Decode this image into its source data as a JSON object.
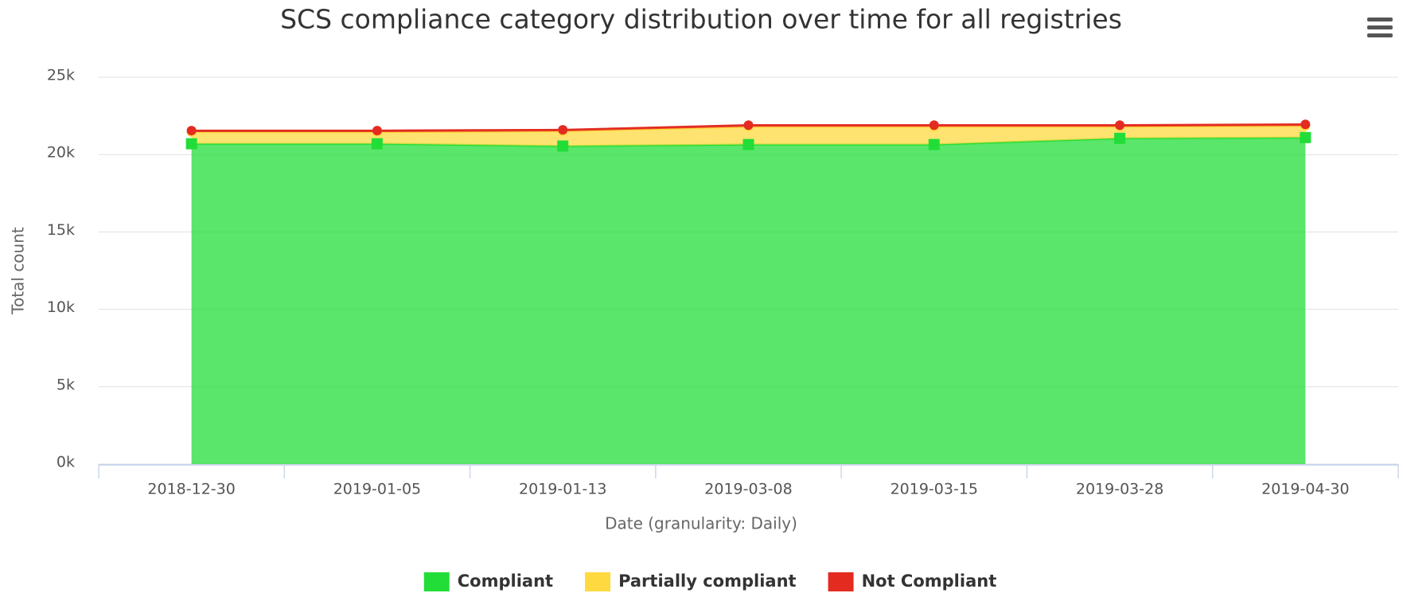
{
  "chart_data": {
    "type": "area",
    "stacked": true,
    "title": "SCS compliance category distribution over time for all registries",
    "x_label": "Date (granularity: Daily)",
    "y_label": "Total count",
    "categories": [
      "2018-12-30",
      "2019-01-05",
      "2019-01-13",
      "2019-03-08",
      "2019-03-15",
      "2019-03-28",
      "2019-04-30"
    ],
    "series": [
      {
        "name": "Compliant",
        "color": "#22dd38",
        "marker": "square",
        "values": [
          20700,
          20700,
          20550,
          20650,
          20650,
          21050,
          21100
        ]
      },
      {
        "name": "Partially compliant",
        "color": "#ffd940",
        "marker": "circle",
        "values": [
          750,
          750,
          950,
          1150,
          1150,
          750,
          750
        ]
      },
      {
        "name": "Not Compliant",
        "color": "#e32b20",
        "marker": "circle",
        "values": [
          100,
          100,
          100,
          100,
          100,
          100,
          100
        ]
      }
    ],
    "ylim": [
      0,
      25000
    ],
    "yticks": [
      {
        "value": 0,
        "label": "0k"
      },
      {
        "value": 5000,
        "label": "5k"
      },
      {
        "value": 10000,
        "label": "10k"
      },
      {
        "value": 15000,
        "label": "15k"
      },
      {
        "value": 20000,
        "label": "20k"
      },
      {
        "value": 25000,
        "label": "25k"
      }
    ],
    "grid": true,
    "legend": "bottom"
  }
}
